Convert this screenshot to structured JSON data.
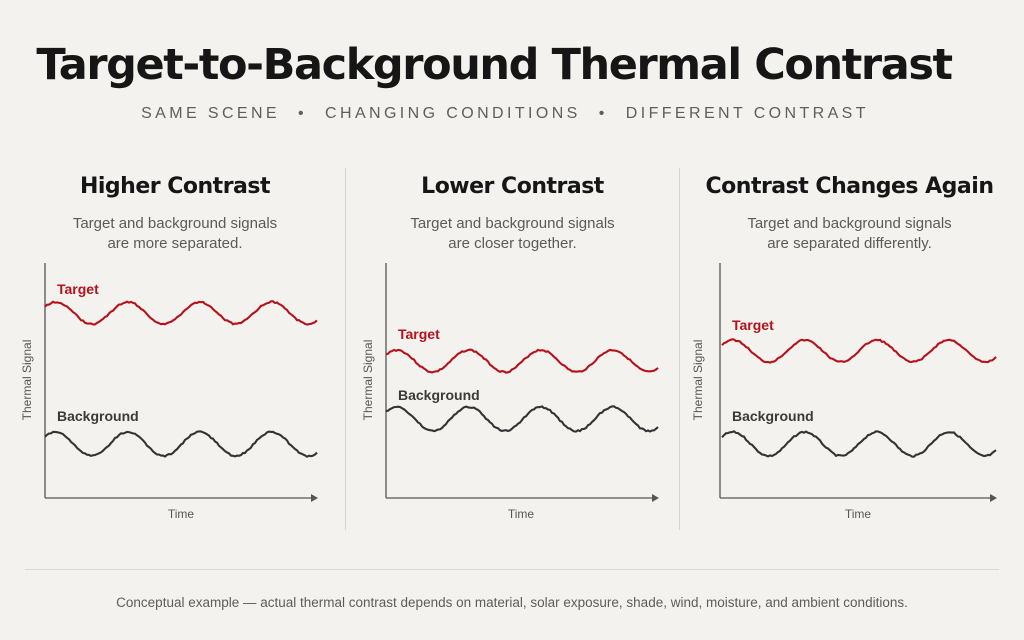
{
  "title": "Target-to-Background Thermal Contrast",
  "subtitle": {
    "parts": [
      "SAME SCENE",
      "CHANGING CONDITIONS",
      "DIFFERENT CONTRAST"
    ],
    "separator": "•"
  },
  "colors": {
    "target": "#b5121b",
    "background": "#333333",
    "axis": "#555555"
  },
  "panels": [
    {
      "heading": "Higher Contrast",
      "desc_line1": "Target and background signals",
      "desc_line2": "are more separated.",
      "ylabel": "Thermal Signal",
      "xlabel": "Time",
      "target_label": "Target",
      "background_label": "Background"
    },
    {
      "heading": "Lower Contrast",
      "desc_line1": "Target and background signals",
      "desc_line2": "are closer together.",
      "ylabel": "Thermal Signal",
      "xlabel": "Time",
      "target_label": "Target",
      "background_label": "Background"
    },
    {
      "heading": "Contrast Changes Again",
      "desc_line1": "Target and background signals",
      "desc_line2": "are separated differently.",
      "ylabel": "Thermal Signal",
      "xlabel": "Time",
      "target_label": "Target",
      "background_label": "Background"
    }
  ],
  "footnote": "Conceptual example — actual thermal contrast depends on material, solar exposure, shade, wind, moisture, and ambient conditions."
}
